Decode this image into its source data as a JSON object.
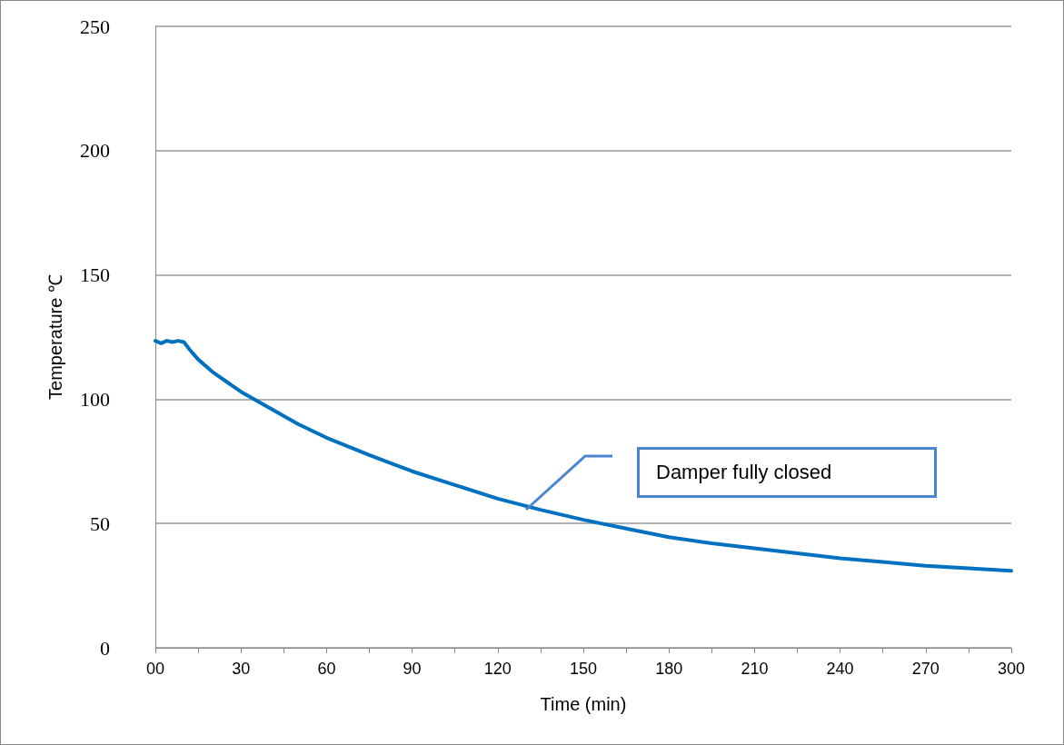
{
  "chart_data": {
    "type": "line",
    "xlabel": "Time (min)",
    "ylabel": "Temperature ℃",
    "x": [
      0,
      2,
      4,
      6,
      8,
      10,
      12,
      15,
      20,
      25,
      30,
      40,
      50,
      60,
      75,
      90,
      105,
      120,
      135,
      150,
      165,
      180,
      195,
      210,
      225,
      240,
      255,
      270,
      285,
      300
    ],
    "series": [
      {
        "color": "#0070c0",
        "values": [
          123.5,
          122.5,
          123.5,
          123,
          123.5,
          123,
          120,
          116,
          111,
          107,
          103,
          96.5,
          90,
          84.5,
          77.5,
          71,
          65.5,
          60,
          55.5,
          51.5,
          48,
          44.5,
          42,
          40,
          38,
          36,
          34.5,
          33,
          32,
          31
        ]
      }
    ],
    "xlim": [
      0,
      300
    ],
    "xticks": [
      {
        "value": 0,
        "label": "00"
      },
      {
        "value": 15,
        "label": null
      },
      30,
      {
        "value": 45,
        "label": null
      },
      60,
      {
        "value": 75,
        "label": null
      },
      90,
      {
        "value": 105,
        "label": null
      },
      120,
      {
        "value": 135,
        "label": null
      },
      150,
      {
        "value": 165,
        "label": null
      },
      180,
      {
        "value": 195,
        "label": null
      },
      210,
      {
        "value": 225,
        "label": null
      },
      240,
      {
        "value": 255,
        "label": null
      },
      270,
      {
        "value": 285,
        "label": null
      },
      300
    ],
    "ylim": [
      0,
      250
    ],
    "yticks": [
      0,
      50,
      100,
      150,
      200,
      250
    ],
    "grid": "y",
    "marker": "none",
    "line_style": "solid",
    "annotations": [
      "Damper fully closed"
    ]
  }
}
